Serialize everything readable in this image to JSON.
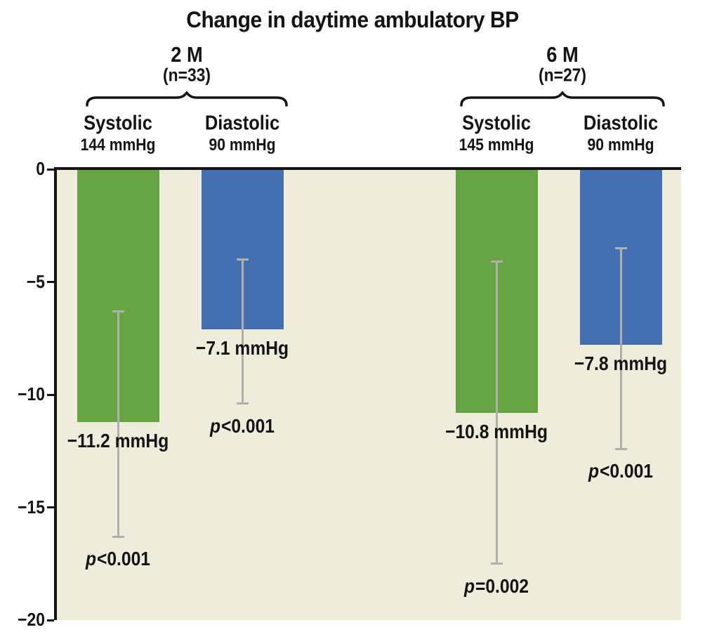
{
  "title": "Change in daytime ambulatory BP",
  "colors": {
    "systolic": "#67a544",
    "diastolic": "#4470b2",
    "plot_bg": "#efecdb",
    "axis": "#141414",
    "error_bar": "#b1b0ad",
    "text": "#141414"
  },
  "chart_data": {
    "type": "bar",
    "title": "Change in daytime ambulatory BP",
    "unit": "mmHg",
    "ylim": [
      -20,
      0
    ],
    "grid": false,
    "legend": "none",
    "y_ticks": [
      {
        "value": 0,
        "label": "0"
      },
      {
        "value": -5,
        "label": "−5"
      },
      {
        "value": -10,
        "label": "−10"
      },
      {
        "value": -15,
        "label": "−15"
      },
      {
        "value": -20,
        "label": "−20"
      }
    ],
    "groups": [
      {
        "label": "2 M",
        "n_label": "(n=33)",
        "bars": [
          {
            "measure": "Systolic",
            "baseline": "144 mmHg",
            "value": -11.2,
            "value_label": "−11.2 mmHg",
            "p_label": "p<0.001",
            "ci": [
              -6.3,
              -16.3
            ],
            "color_key": "systolic"
          },
          {
            "measure": "Diastolic",
            "baseline": "90 mmHg",
            "value": -7.1,
            "value_label": "−7.1 mmHg",
            "p_label": "p<0.001",
            "ci": [
              -4.0,
              -10.4
            ],
            "color_key": "diastolic"
          }
        ]
      },
      {
        "label": "6 M",
        "n_label": "(n=27)",
        "bars": [
          {
            "measure": "Systolic",
            "baseline": "145 mmHg",
            "value": -10.8,
            "value_label": "−10.8 mmHg",
            "p_label": "p=0.002",
            "ci": [
              -4.1,
              -17.5
            ],
            "color_key": "systolic"
          },
          {
            "measure": "Diastolic",
            "baseline": "90 mmHg",
            "value": -7.8,
            "value_label": "−7.8 mmHg",
            "p_label": "p<0.001",
            "ci": [
              -3.5,
              -12.4
            ],
            "color_key": "diastolic"
          }
        ]
      }
    ]
  }
}
